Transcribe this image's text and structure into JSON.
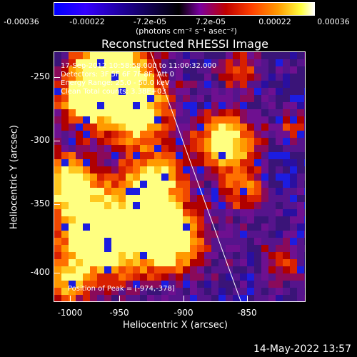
{
  "colorbar": {
    "ticks": [
      "-0.00036",
      "-0.00022",
      "-7.2e-05",
      "7.2e-05",
      "0.00022",
      "0.00036"
    ],
    "units": "(photons cm⁻² s⁻¹ asec⁻²)"
  },
  "plot": {
    "title": "Reconstructed RHESSI Image",
    "xlabel": "Heliocentric X (arcsec)",
    "ylabel": "Heliocentric Y (arcsec)",
    "xticks": [
      "-1000",
      "-950",
      "-900",
      "-850"
    ],
    "yticks": [
      "-250",
      "-300",
      "-350",
      "-400"
    ]
  },
  "info": {
    "time_range": "17-Sep-2012 10:58:58.000 to 11:00:32.000",
    "detectors": "Detectors: 3F 5F 6F 7F 8F, Att 0",
    "energy": "Energy Range: 25.0 - 50.0 keV",
    "method": "Clean     Total counts: 3.38E+03",
    "peak": "Position of Peak = [-974,-378]"
  },
  "footer": {
    "datestamp": "14-May-2022 13:57"
  },
  "colors": {
    "background": "#000000",
    "text": "#ffffff"
  }
}
